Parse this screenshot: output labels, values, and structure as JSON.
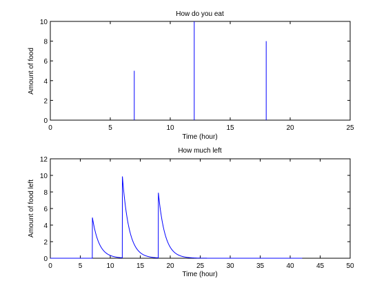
{
  "chart_data": [
    {
      "type": "line",
      "title": "How do you eat",
      "xlabel": "Time (hour)",
      "ylabel": "Amount of food",
      "xlim": [
        0,
        25
      ],
      "ylim": [
        0,
        10
      ],
      "xticks": [
        0,
        5,
        10,
        15,
        20,
        25
      ],
      "yticks": [
        0,
        2,
        4,
        6,
        8,
        10
      ],
      "grid": false,
      "color": "#0000ff",
      "series": [
        {
          "style": "impulse",
          "points": [
            {
              "x": 7,
              "y": 5
            },
            {
              "x": 12,
              "y": 10
            },
            {
              "x": 18,
              "y": 8
            }
          ]
        }
      ]
    },
    {
      "type": "line",
      "title": "How much left",
      "xlabel": "Time (hour)",
      "ylabel": "Amount of food left",
      "xlim": [
        0,
        50
      ],
      "ylim": [
        0,
        12
      ],
      "xticks": [
        0,
        5,
        10,
        15,
        20,
        25,
        30,
        35,
        40,
        45,
        50
      ],
      "yticks": [
        0,
        2,
        4,
        6,
        8,
        10,
        12
      ],
      "grid": false,
      "color": "#0000ff",
      "series": [
        {
          "style": "decay",
          "x_start": 0,
          "x_end": 42,
          "decay_per_hour": 0.9,
          "doses": [
            {
              "x": 7,
              "y": 5
            },
            {
              "x": 12,
              "y": 10
            },
            {
              "x": 18,
              "y": 8
            }
          ]
        }
      ]
    }
  ]
}
